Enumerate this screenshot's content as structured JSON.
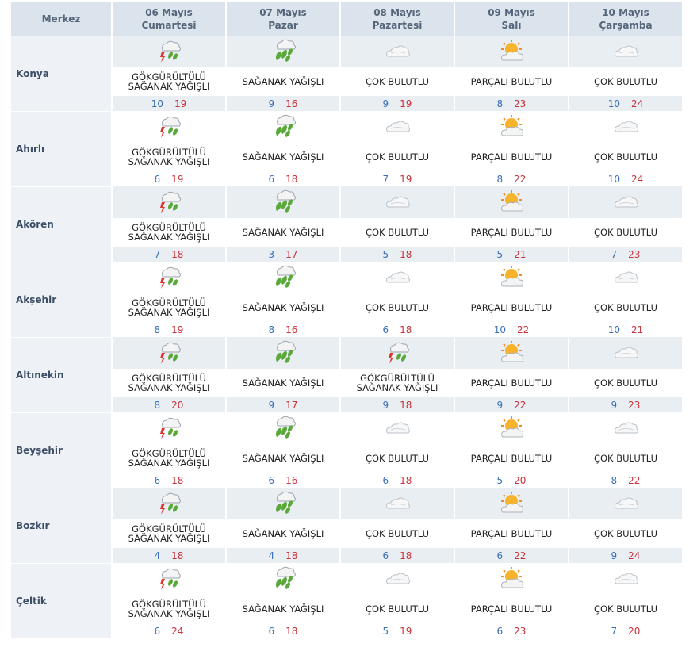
{
  "header": {
    "corner": "Merkez",
    "days": [
      {
        "date": "06 Mayıs",
        "weekday": "Cumartesi"
      },
      {
        "date": "07 Mayıs",
        "weekday": "Pazar"
      },
      {
        "date": "08 Mayıs",
        "weekday": "Pazartesi"
      },
      {
        "date": "09 Mayıs",
        "weekday": "Salı"
      },
      {
        "date": "10 Mayıs",
        "weekday": "Çarşamba"
      }
    ]
  },
  "rows": [
    {
      "name": "Konya",
      "days": [
        {
          "icon": "thunderstorm-icon",
          "desc": "GÖKGÜRÜLTÜLÜ SAĞANAK YAĞIŞLI",
          "min": "10",
          "max": "19"
        },
        {
          "icon": "showers-icon",
          "desc": "SAĞANAK YAĞIŞLI",
          "min": "9",
          "max": "16"
        },
        {
          "icon": "cloudy-icon",
          "desc": "ÇOK BULUTLU",
          "min": "9",
          "max": "19"
        },
        {
          "icon": "partly-cloudy-icon",
          "desc": "PARÇALI BULUTLU",
          "min": "8",
          "max": "23"
        },
        {
          "icon": "cloudy-icon",
          "desc": "ÇOK BULUTLU",
          "min": "10",
          "max": "24"
        }
      ]
    },
    {
      "name": "Ahırlı",
      "days": [
        {
          "icon": "thunderstorm-icon",
          "desc": "GÖKGÜRÜLTÜLÜ SAĞANAK YAĞIŞLI",
          "min": "6",
          "max": "19"
        },
        {
          "icon": "showers-icon",
          "desc": "SAĞANAK YAĞIŞLI",
          "min": "6",
          "max": "18"
        },
        {
          "icon": "cloudy-icon",
          "desc": "ÇOK BULUTLU",
          "min": "7",
          "max": "19"
        },
        {
          "icon": "partly-cloudy-icon",
          "desc": "PARÇALI BULUTLU",
          "min": "8",
          "max": "22"
        },
        {
          "icon": "cloudy-icon",
          "desc": "ÇOK BULUTLU",
          "min": "10",
          "max": "24"
        }
      ]
    },
    {
      "name": "Akören",
      "days": [
        {
          "icon": "thunderstorm-icon",
          "desc": "GÖKGÜRÜLTÜLÜ SAĞANAK YAĞIŞLI",
          "min": "7",
          "max": "18"
        },
        {
          "icon": "showers-icon",
          "desc": "SAĞANAK YAĞIŞLI",
          "min": "3",
          "max": "17"
        },
        {
          "icon": "cloudy-icon",
          "desc": "ÇOK BULUTLU",
          "min": "5",
          "max": "18"
        },
        {
          "icon": "partly-cloudy-icon",
          "desc": "PARÇALI BULUTLU",
          "min": "5",
          "max": "21"
        },
        {
          "icon": "cloudy-icon",
          "desc": "ÇOK BULUTLU",
          "min": "7",
          "max": "23"
        }
      ]
    },
    {
      "name": "Akşehir",
      "days": [
        {
          "icon": "thunderstorm-icon",
          "desc": "GÖKGÜRÜLTÜLÜ SAĞANAK YAĞIŞLI",
          "min": "8",
          "max": "19"
        },
        {
          "icon": "showers-icon",
          "desc": "SAĞANAK YAĞIŞLI",
          "min": "8",
          "max": "16"
        },
        {
          "icon": "cloudy-icon",
          "desc": "ÇOK BULUTLU",
          "min": "6",
          "max": "18"
        },
        {
          "icon": "partly-cloudy-icon",
          "desc": "PARÇALI BULUTLU",
          "min": "10",
          "max": "22"
        },
        {
          "icon": "cloudy-icon",
          "desc": "ÇOK BULUTLU",
          "min": "10",
          "max": "21"
        }
      ]
    },
    {
      "name": "Altınekin",
      "days": [
        {
          "icon": "thunderstorm-icon",
          "desc": "GÖKGÜRÜLTÜLÜ SAĞANAK YAĞIŞLI",
          "min": "8",
          "max": "20"
        },
        {
          "icon": "showers-icon",
          "desc": "SAĞANAK YAĞIŞLI",
          "min": "9",
          "max": "17"
        },
        {
          "icon": "thunderstorm-icon",
          "desc": "GÖKGÜRÜLTÜLÜ SAĞANAK YAĞIŞLI",
          "min": "9",
          "max": "18"
        },
        {
          "icon": "partly-cloudy-icon",
          "desc": "PARÇALI BULUTLU",
          "min": "9",
          "max": "22"
        },
        {
          "icon": "cloudy-icon",
          "desc": "ÇOK BULUTLU",
          "min": "9",
          "max": "23"
        }
      ]
    },
    {
      "name": "Beyşehir",
      "days": [
        {
          "icon": "thunderstorm-icon",
          "desc": "GÖKGÜRÜLTÜLÜ SAĞANAK YAĞIŞLI",
          "min": "6",
          "max": "18"
        },
        {
          "icon": "showers-icon",
          "desc": "SAĞANAK YAĞIŞLI",
          "min": "6",
          "max": "16"
        },
        {
          "icon": "cloudy-icon",
          "desc": "ÇOK BULUTLU",
          "min": "6",
          "max": "18"
        },
        {
          "icon": "partly-cloudy-icon",
          "desc": "PARÇALI BULUTLU",
          "min": "5",
          "max": "20"
        },
        {
          "icon": "cloudy-icon",
          "desc": "ÇOK BULUTLU",
          "min": "8",
          "max": "22"
        }
      ]
    },
    {
      "name": "Bozkır",
      "days": [
        {
          "icon": "thunderstorm-icon",
          "desc": "GÖKGÜRÜLTÜLÜ SAĞANAK YAĞIŞLI",
          "min": "4",
          "max": "18"
        },
        {
          "icon": "showers-icon",
          "desc": "SAĞANAK YAĞIŞLI",
          "min": "4",
          "max": "18"
        },
        {
          "icon": "cloudy-icon",
          "desc": "ÇOK BULUTLU",
          "min": "6",
          "max": "18"
        },
        {
          "icon": "partly-cloudy-icon",
          "desc": "PARÇALI BULUTLU",
          "min": "6",
          "max": "22"
        },
        {
          "icon": "cloudy-icon",
          "desc": "ÇOK BULUTLU",
          "min": "9",
          "max": "24"
        }
      ]
    },
    {
      "name": "Çeltik",
      "days": [
        {
          "icon": "thunderstorm-icon",
          "desc": "GÖKGÜRÜLTÜLÜ SAĞANAK YAĞIŞLI",
          "min": "6",
          "max": "24"
        },
        {
          "icon": "showers-icon",
          "desc": "SAĞANAK YAĞIŞLI",
          "min": "6",
          "max": "18"
        },
        {
          "icon": "cloudy-icon",
          "desc": "ÇOK BULUTLU",
          "min": "5",
          "max": "19"
        },
        {
          "icon": "partly-cloudy-icon",
          "desc": "PARÇALI BULUTLU",
          "min": "6",
          "max": "23"
        },
        {
          "icon": "cloudy-icon",
          "desc": "ÇOK BULUTLU",
          "min": "7",
          "max": "20"
        }
      ]
    }
  ],
  "colors": {
    "header_bg": "#dbe4ec",
    "stripe_bg": "#e9eef3",
    "min_temp": "#3a6fb8",
    "max_temp": "#c8323a"
  }
}
